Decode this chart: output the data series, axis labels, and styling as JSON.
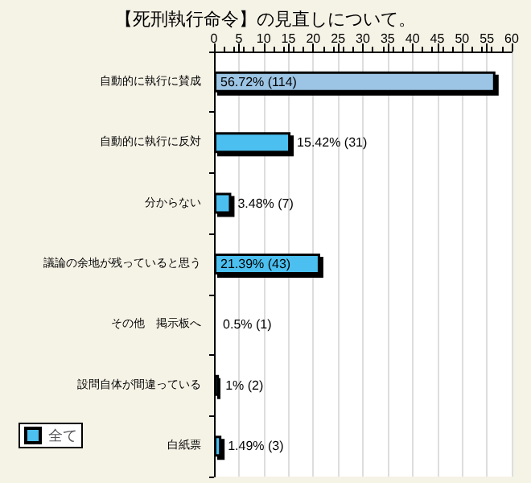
{
  "chart_data": {
    "type": "bar",
    "title": "【死刑執行命令】の見直しについて。",
    "orientation": "horizontal",
    "categories": [
      "自動的に執行に賛成",
      "自動的に執行に反対",
      "分からない",
      "議論の余地が残っていると思う",
      "その他　掲示板へ",
      "設問自体が間違っている",
      "白紙票"
    ],
    "series": [
      {
        "name": "全て",
        "color": "#4cc0f0",
        "colors": [
          "#9cc4e4",
          "#4cc0f0",
          "#4cc0f0",
          "#4cc0f0",
          "#4cc0f0",
          "#4cc0f0",
          "#4cc0f0"
        ],
        "values": [
          56.72,
          15.42,
          3.48,
          21.39,
          0.5,
          1,
          1.49
        ],
        "value_labels": [
          "56.72% (114)",
          "15.42% (31)",
          "3.48% (7)",
          "21.39% (43)",
          "0.5% (1)",
          "1% (2)",
          "1.49% (3)"
        ]
      }
    ],
    "xlim": [
      0,
      60
    ],
    "xticks": [
      0,
      5,
      10,
      15,
      20,
      25,
      30,
      35,
      40,
      45,
      50,
      55,
      60
    ],
    "grid": "x",
    "legend": "bottom left"
  }
}
